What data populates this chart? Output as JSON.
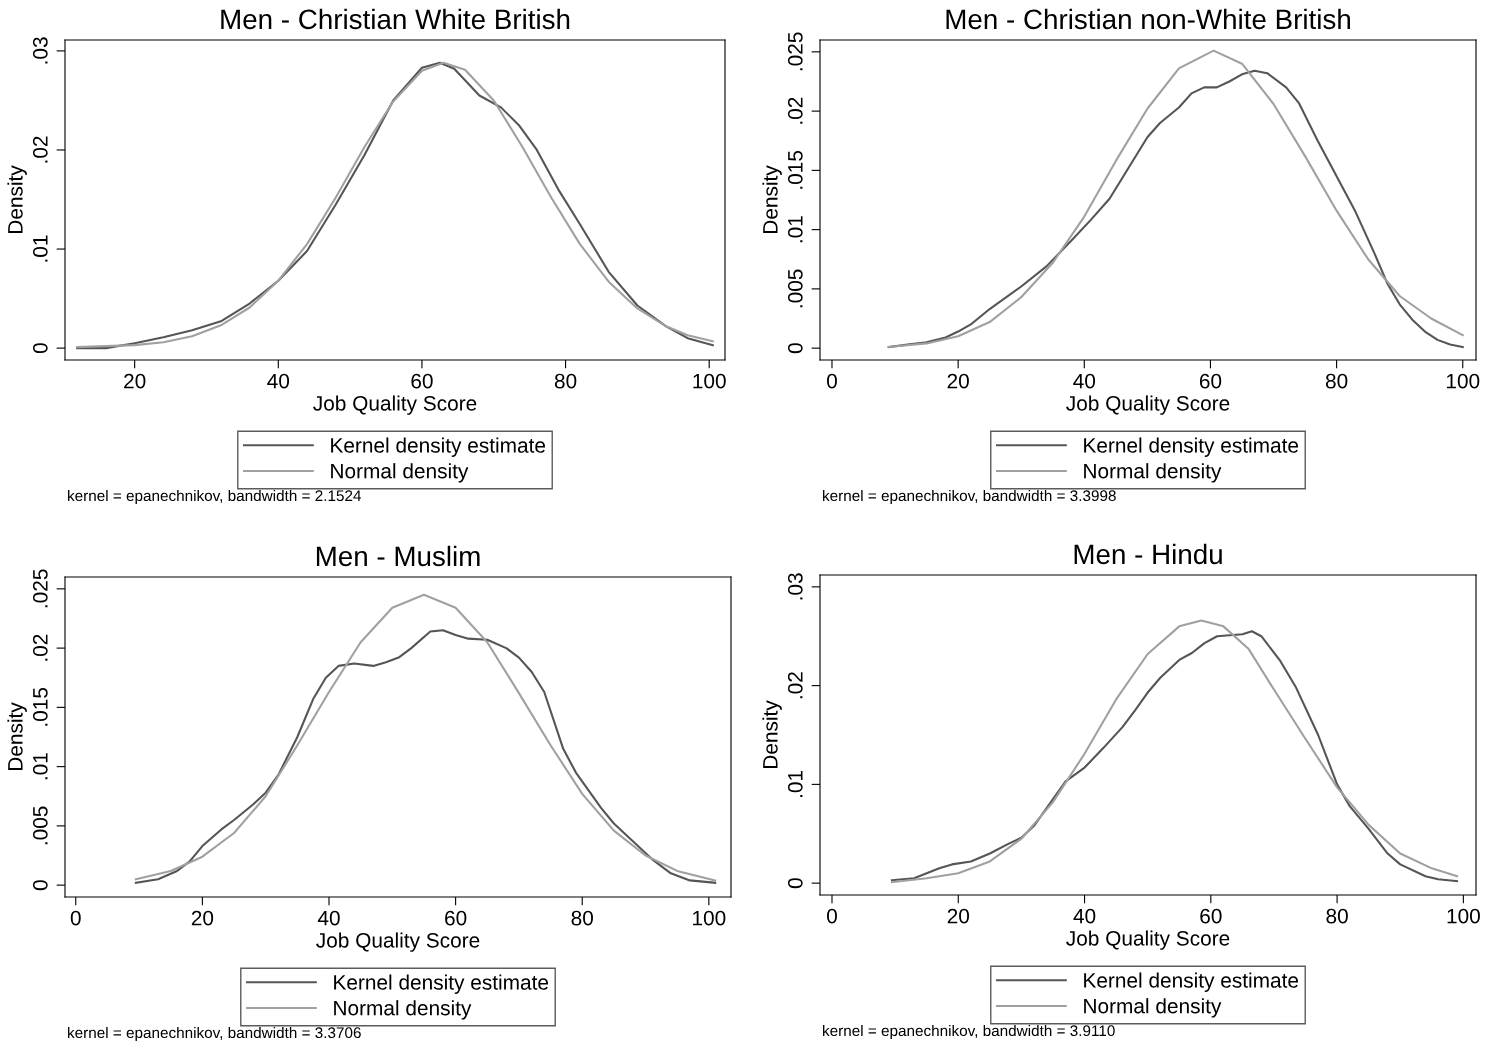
{
  "chart_data": [
    {
      "type": "line",
      "title": "Men - Christian White British",
      "xlabel": "Job Quality Score",
      "ylabel": "Density",
      "xlim": [
        10.3,
        102.2
      ],
      "ylim": [
        -0.0012,
        0.0311
      ],
      "xticks": [
        20,
        40,
        60,
        80,
        100
      ],
      "yticks": [
        0,
        {
          "value": 0.01,
          "label": ".01"
        },
        {
          "value": 0.02,
          "label": ".02"
        },
        {
          "value": 0.03,
          "label": ".03"
        }
      ],
      "grid": false,
      "legend": "bottom",
      "marker": "none",
      "line_style": "solid",
      "annotations": [
        "kernel = epanechnikov, bandwidth = 2.1524"
      ],
      "series": [
        {
          "name": "Kernel density estimate",
          "color": "#555555",
          "x": [
            12,
            16,
            20,
            24,
            28,
            32,
            36,
            40,
            44,
            48,
            52,
            56,
            60,
            62.5,
            64.5,
            68,
            71,
            73.5,
            76,
            79,
            82,
            86,
            90,
            94,
            97,
            100.5
          ],
          "values": [
            0,
            0,
            0.0005,
            0.0011,
            0.0018,
            0.0027,
            0.0045,
            0.0068,
            0.0098,
            0.0145,
            0.0195,
            0.025,
            0.0283,
            0.0288,
            0.0282,
            0.0255,
            0.0243,
            0.0225,
            0.02,
            0.016,
            0.0125,
            0.0077,
            0.0043,
            0.0022,
            0.001,
            0.0003
          ]
        },
        {
          "name": "Normal density",
          "color": "#a0a0a0",
          "x": [
            12,
            20,
            24,
            28,
            32,
            36,
            40,
            44,
            48,
            52,
            56,
            60,
            63,
            66,
            70,
            74,
            78,
            82,
            86,
            90,
            94,
            97,
            100.5
          ],
          "values": [
            0.0001,
            0.0003,
            0.0006,
            0.0012,
            0.0023,
            0.0041,
            0.0068,
            0.0105,
            0.0152,
            0.0203,
            0.0249,
            0.028,
            0.0288,
            0.0281,
            0.025,
            0.0203,
            0.0152,
            0.0105,
            0.0067,
            0.004,
            0.0022,
            0.0013,
            0.0007
          ]
        }
      ]
    },
    {
      "type": "line",
      "title": "Men - Christian non-White British",
      "xlabel": "Job Quality Score",
      "ylabel": "Density",
      "xlim": [
        -1.9,
        102.1
      ],
      "ylim": [
        -0.001,
        0.026
      ],
      "xticks": [
        0,
        20,
        40,
        60,
        80,
        100
      ],
      "yticks": [
        0,
        {
          "value": 0.005,
          "label": ".005"
        },
        {
          "value": 0.01,
          "label": ".01"
        },
        {
          "value": 0.015,
          "label": ".015"
        },
        {
          "value": 0.02,
          "label": ".02"
        },
        {
          "value": 0.025,
          "label": ".025"
        }
      ],
      "grid": false,
      "legend": "bottom",
      "marker": "none",
      "line_style": "solid",
      "annotations": [
        "kernel = epanechnikov, bandwidth = 3.3998"
      ],
      "series": [
        {
          "name": "Kernel density estimate",
          "color": "#555555",
          "x": [
            9,
            12,
            15,
            18,
            20,
            22,
            25,
            30,
            34,
            38,
            41,
            44,
            47,
            50,
            52,
            55,
            57,
            59,
            61,
            63,
            65,
            67,
            69,
            72,
            74,
            77,
            80,
            83,
            86,
            88,
            90,
            92,
            94,
            96,
            98,
            100
          ],
          "values": [
            0.0001,
            0.0003,
            0.0005,
            0.0009,
            0.0014,
            0.002,
            0.0033,
            0.0052,
            0.0069,
            0.0091,
            0.0108,
            0.0126,
            0.0152,
            0.0178,
            0.019,
            0.0203,
            0.0215,
            0.022,
            0.022,
            0.0225,
            0.0231,
            0.0234,
            0.0232,
            0.022,
            0.0207,
            0.0175,
            0.0145,
            0.0115,
            0.008,
            0.0055,
            0.0037,
            0.0024,
            0.0014,
            0.0007,
            0.0003,
            0.0001
          ]
        },
        {
          "name": "Normal density",
          "color": "#a0a0a0",
          "x": [
            9,
            15,
            20,
            25,
            30,
            35,
            40,
            45,
            50,
            55,
            60.5,
            65,
            70,
            75,
            80,
            85,
            90,
            95,
            100
          ],
          "values": [
            0.0001,
            0.0004,
            0.001,
            0.0022,
            0.0043,
            0.0072,
            0.0111,
            0.0158,
            0.0202,
            0.0236,
            0.0251,
            0.024,
            0.0206,
            0.0162,
            0.0116,
            0.0075,
            0.0044,
            0.0025,
            0.0011
          ]
        }
      ]
    },
    {
      "type": "line",
      "title": "Men - Muslim",
      "xlabel": "Job Quality Score",
      "ylabel": "Density",
      "xlim": [
        -1.7,
        103.5
      ],
      "ylim": [
        -0.001,
        0.026
      ],
      "xticks": [
        0,
        20,
        40,
        60,
        80,
        100
      ],
      "yticks": [
        0,
        {
          "value": 0.005,
          "label": ".005"
        },
        {
          "value": 0.01,
          "label": ".01"
        },
        {
          "value": 0.015,
          "label": ".015"
        },
        {
          "value": 0.02,
          "label": ".02"
        },
        {
          "value": 0.025,
          "label": ".025"
        }
      ],
      "grid": false,
      "legend": "bottom",
      "marker": "none",
      "line_style": "solid",
      "annotations": [
        "kernel = epanechnikov, bandwidth = 3.3706"
      ],
      "series": [
        {
          "name": "Kernel density estimate",
          "color": "#555555",
          "x": [
            9.5,
            13,
            16,
            18,
            20,
            23,
            25,
            28,
            30,
            32,
            35,
            37.5,
            39.5,
            41.5,
            44,
            47,
            49,
            51,
            53,
            56,
            58,
            60,
            62,
            65,
            68,
            70,
            72,
            74,
            77,
            79,
            81,
            83,
            85,
            88,
            91,
            94,
            97,
            101
          ],
          "values": [
            0.0002,
            0.0005,
            0.0012,
            0.002,
            0.0033,
            0.0047,
            0.0055,
            0.0068,
            0.0078,
            0.0093,
            0.0125,
            0.0157,
            0.0175,
            0.0185,
            0.0187,
            0.0185,
            0.0188,
            0.0192,
            0.02,
            0.0214,
            0.0215,
            0.0211,
            0.0208,
            0.0207,
            0.02,
            0.0192,
            0.018,
            0.0163,
            0.0115,
            0.0095,
            0.008,
            0.0065,
            0.0052,
            0.0037,
            0.0022,
            0.001,
            0.0004,
            0.0002
          ]
        },
        {
          "name": "Normal density",
          "color": "#a0a0a0",
          "x": [
            9.5,
            15,
            20,
            25,
            30,
            35,
            40,
            45,
            50,
            55,
            60,
            65,
            70,
            75,
            80,
            85,
            90,
            95,
            101
          ],
          "values": [
            0.0005,
            0.0012,
            0.0024,
            0.0044,
            0.0075,
            0.0118,
            0.0163,
            0.0205,
            0.0234,
            0.0245,
            0.0234,
            0.0205,
            0.0162,
            0.0118,
            0.0077,
            0.0046,
            0.0025,
            0.0012,
            0.0004
          ]
        }
      ]
    },
    {
      "type": "line",
      "title": "Men - Hindu",
      "xlabel": "Job Quality Score",
      "ylabel": "Density",
      "xlim": [
        -1.9,
        102
      ],
      "ylim": [
        -0.0012,
        0.0312
      ],
      "xticks": [
        0,
        20,
        40,
        60,
        80,
        100
      ],
      "yticks": [
        0,
        {
          "value": 0.01,
          "label": ".01"
        },
        {
          "value": 0.02,
          "label": ".02"
        },
        {
          "value": 0.03,
          "label": ".03"
        }
      ],
      "grid": false,
      "legend": "bottom",
      "marker": "none",
      "line_style": "solid",
      "annotations": [
        "kernel = epanechnikov, bandwidth = 3.9110"
      ],
      "series": [
        {
          "name": "Kernel density estimate",
          "color": "#555555",
          "x": [
            9.5,
            13,
            17,
            19,
            22,
            25,
            28,
            30,
            32,
            35,
            37,
            40,
            43,
            46,
            48,
            50,
            52,
            55,
            57,
            59,
            61,
            63,
            65,
            66.5,
            68,
            71,
            73.5,
            77,
            80,
            82,
            85,
            88,
            90,
            94,
            96,
            99
          ],
          "values": [
            0.0003,
            0.0005,
            0.0015,
            0.0019,
            0.0022,
            0.003,
            0.004,
            0.0046,
            0.0058,
            0.0085,
            0.0103,
            0.0117,
            0.0137,
            0.0158,
            0.0175,
            0.0193,
            0.0208,
            0.0226,
            0.0233,
            0.0243,
            0.025,
            0.0251,
            0.0252,
            0.0255,
            0.025,
            0.0225,
            0.0198,
            0.015,
            0.01,
            0.0078,
            0.0055,
            0.003,
            0.0019,
            0.0007,
            0.0004,
            0.0002
          ]
        },
        {
          "name": "Normal density",
          "color": "#a0a0a0",
          "x": [
            9.5,
            15,
            20,
            25,
            30,
            35,
            40,
            45,
            50,
            55,
            58.5,
            62,
            66,
            70,
            75,
            80,
            85,
            90,
            95,
            99
          ],
          "values": [
            0.0001,
            0.0005,
            0.001,
            0.0022,
            0.0045,
            0.0082,
            0.0131,
            0.0186,
            0.0232,
            0.026,
            0.0266,
            0.026,
            0.0237,
            0.0196,
            0.0146,
            0.0097,
            0.0059,
            0.003,
            0.0015,
            0.0007
          ]
        }
      ]
    }
  ]
}
